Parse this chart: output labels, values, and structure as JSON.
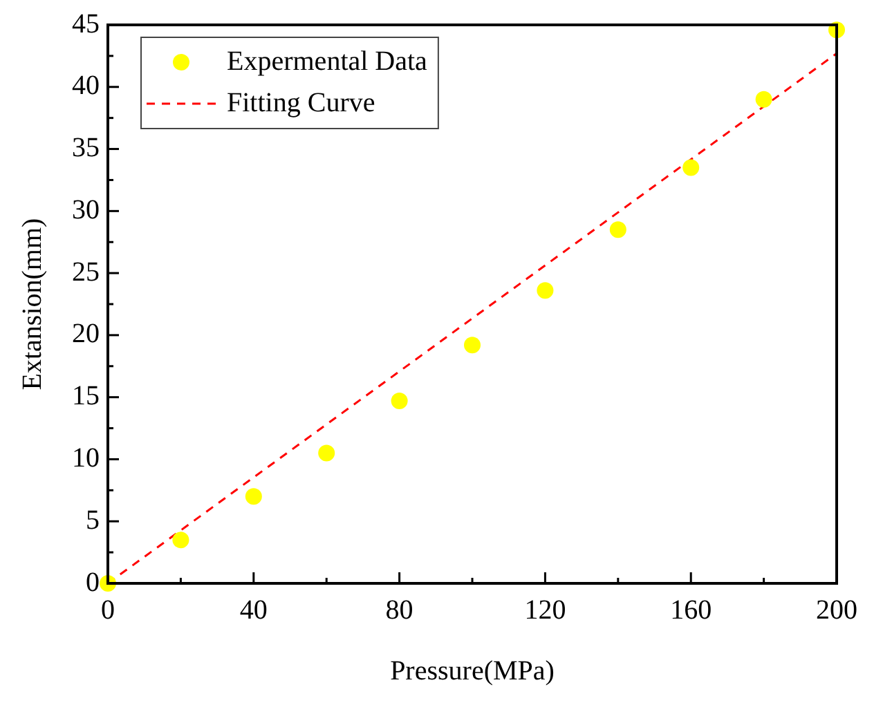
{
  "chart_data": {
    "type": "scatter",
    "xlabel": "Pressure(MPa)",
    "ylabel": "Extansion(mm)",
    "legend": "top left",
    "grid": false,
    "series": [
      {
        "name": "Expermental Data",
        "color": "#ffff00",
        "marker": "circle",
        "x": [
          0,
          20,
          40,
          60,
          80,
          100,
          120,
          140,
          160,
          180,
          200
        ],
        "values": [
          0,
          3.5,
          7.0,
          10.5,
          14.7,
          19.2,
          23.6,
          28.5,
          33.5,
          39.0,
          44.6
        ]
      },
      {
        "name": "Fitting Curve",
        "type": "line",
        "color": "#ff0000",
        "marker": "none",
        "line_style": "dashed",
        "x": [
          0,
          200
        ],
        "values": [
          0,
          42.7
        ]
      }
    ],
    "xlim": [
      0,
      200
    ],
    "ylim": [
      0,
      45
    ],
    "xticks": [
      0,
      {
        "value": 20,
        "label": null
      },
      40,
      {
        "value": 60,
        "label": null
      },
      80,
      {
        "value": 100,
        "label": null
      },
      120,
      {
        "value": 140,
        "label": null
      },
      160,
      {
        "value": 180,
        "label": null
      },
      200
    ],
    "yticks": [
      0,
      {
        "value": 2.5,
        "label": null
      },
      5,
      {
        "value": 7.5,
        "label": null
      },
      10,
      {
        "value": 12.5,
        "label": null
      },
      15,
      {
        "value": 17.5,
        "label": null
      },
      20,
      {
        "value": 22.5,
        "label": null
      },
      25,
      {
        "value": 27.5,
        "label": null
      },
      30,
      {
        "value": 32.5,
        "label": null
      },
      35,
      {
        "value": 37.5,
        "label": null
      },
      40,
      {
        "value": 42.5,
        "label": null
      },
      45
    ]
  }
}
